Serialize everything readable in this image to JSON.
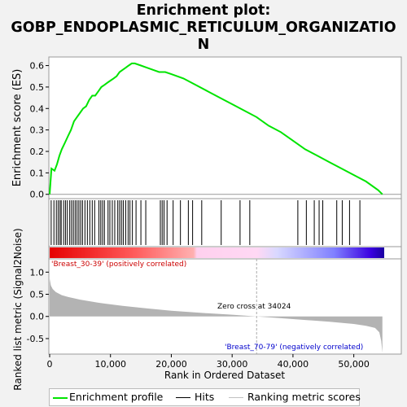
{
  "header": {
    "title_line1": "Enrichment plot:",
    "title_line2": "GOBP_ENDOPLASMIC_RETICULUM_ORGANIZATIO",
    "title_line3": "N"
  },
  "axes": {
    "es_ylabel": "Enrichment score (ES)",
    "metric_ylabel": "Ranked list metric (Signal2Noise)",
    "xlabel": "Rank in Ordered Dataset"
  },
  "annotations": {
    "positive_label": "'Breast_30-39' (positively correlated)",
    "negative_label": "'Breast_70-79' (negatively correlated)",
    "zero_cross": "Zero cross at 34024"
  },
  "legend": {
    "items": [
      {
        "label": "Enrichment profile",
        "color": "#00e400"
      },
      {
        "label": "Hits",
        "color": "#000000"
      },
      {
        "label": "Ranking metric scores",
        "color": "#c0c0c0"
      }
    ]
  },
  "colors": {
    "es_line": "#00e400",
    "hit": "#000000",
    "metric_fill": "#b3b3b3",
    "positive_text": "#cc0000",
    "negative_text": "#0000cc"
  },
  "chart_data": [
    {
      "type": "line",
      "name": "enrichment-profile",
      "xlim": [
        0,
        55000
      ],
      "ylim": [
        -0.02,
        0.64
      ],
      "yticks": [
        0.0,
        0.1,
        0.2,
        0.3,
        0.4,
        0.5,
        0.6
      ],
      "ytick_labels": [
        "0.0",
        "0.1",
        "0.2",
        "0.3",
        "0.4",
        "0.5",
        "0.6"
      ],
      "x": [
        0,
        300,
        800,
        1200,
        1600,
        2000,
        2500,
        3000,
        3500,
        4000,
        4500,
        5000,
        5500,
        6000,
        6500,
        7000,
        7500,
        8000,
        8500,
        9000,
        9500,
        10000,
        10500,
        11000,
        11500,
        12000,
        12500,
        13000,
        13500,
        14000,
        15000,
        16000,
        17000,
        18000,
        19000,
        20000,
        22000,
        24000,
        26000,
        28000,
        30000,
        32000,
        34000,
        36000,
        38000,
        40000,
        42000,
        44000,
        46000,
        48000,
        50000,
        52000,
        54000,
        54700
      ],
      "y": [
        0.0,
        0.12,
        0.11,
        0.14,
        0.18,
        0.21,
        0.24,
        0.27,
        0.3,
        0.34,
        0.36,
        0.38,
        0.4,
        0.41,
        0.44,
        0.46,
        0.46,
        0.48,
        0.5,
        0.51,
        0.52,
        0.53,
        0.54,
        0.55,
        0.57,
        0.58,
        0.59,
        0.6,
        0.61,
        0.61,
        0.6,
        0.59,
        0.58,
        0.57,
        0.57,
        0.56,
        0.54,
        0.51,
        0.48,
        0.45,
        0.42,
        0.39,
        0.36,
        0.32,
        0.29,
        0.25,
        0.21,
        0.18,
        0.15,
        0.12,
        0.09,
        0.06,
        0.02,
        0.0
      ]
    },
    {
      "type": "scatter",
      "name": "hits",
      "x": [
        250,
        700,
        1100,
        1400,
        1700,
        1900,
        2300,
        2600,
        2900,
        3300,
        3600,
        3900,
        4200,
        4500,
        4800,
        5100,
        5400,
        5800,
        6200,
        6600,
        7000,
        7400,
        8100,
        8400,
        8700,
        9000,
        9600,
        9900,
        10300,
        10700,
        11200,
        11500,
        11800,
        12100,
        12500,
        12900,
        13200,
        13600,
        14200,
        15000,
        15800,
        18200,
        18500,
        18800,
        19300,
        20300,
        21500,
        22800,
        23500,
        25000,
        28200,
        31300,
        32900,
        40800,
        42200,
        43500,
        44300,
        44900,
        47200,
        48100,
        49300,
        51000
      ]
    },
    {
      "type": "area",
      "name": "ranked-list-metric",
      "xlim": [
        0,
        55000
      ],
      "ylim": [
        -0.85,
        1.3
      ],
      "yticks": [
        -0.5,
        0.0,
        0.5,
        1.0
      ],
      "ytick_labels": [
        "-0.5",
        "0.0",
        "0.5",
        "1.0"
      ],
      "xticks": [
        0,
        10000,
        20000,
        30000,
        40000,
        50000
      ],
      "xtick_labels": [
        "0",
        "10,000",
        "20,000",
        "30,000",
        "40,000",
        "50,000"
      ],
      "x": [
        0,
        200,
        500,
        1000,
        2000,
        3000,
        5000,
        8000,
        12000,
        16000,
        20000,
        25000,
        30000,
        34024,
        38000,
        42000,
        46000,
        50000,
        52000,
        53500,
        54200,
        54500,
        54700
      ],
      "y": [
        0.85,
        0.7,
        0.62,
        0.55,
        0.48,
        0.44,
        0.38,
        0.31,
        0.24,
        0.18,
        0.13,
        0.08,
        0.04,
        0.0,
        -0.04,
        -0.08,
        -0.12,
        -0.17,
        -0.21,
        -0.26,
        -0.36,
        -0.55,
        -0.82
      ]
    }
  ]
}
